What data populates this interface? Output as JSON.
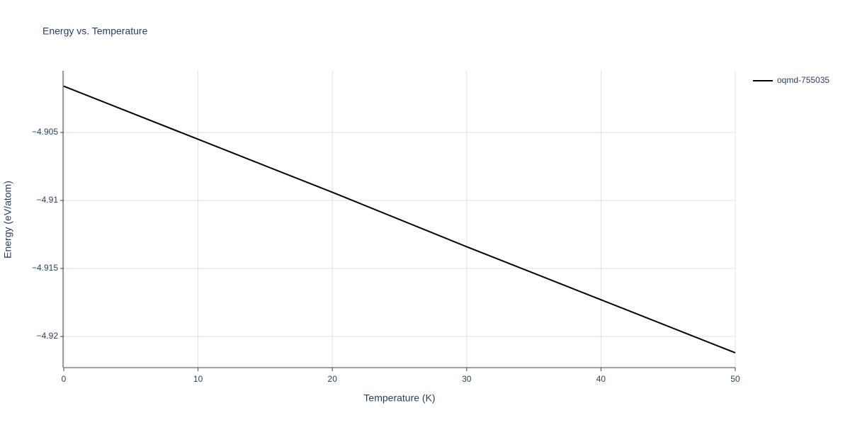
{
  "chart_data": {
    "type": "line",
    "title": "Energy vs. Temperature",
    "x_label": "Temperature (K)",
    "y_label": "Energy (eV/atom)",
    "x": [
      0,
      10,
      20,
      30,
      40,
      50
    ],
    "series": [
      {
        "name": "oqmd-755035",
        "color": "#000000",
        "values": [
          -4.9016,
          -4.9055,
          -4.9094,
          -4.9134,
          -4.9173,
          -4.9212
        ]
      }
    ],
    "xlim": [
      0,
      50
    ],
    "xticks": [
      0,
      10,
      20,
      30,
      40,
      50
    ],
    "ylim": [
      -4.92229,
      -4.90047
    ],
    "yticks": [
      {
        "value": -4.92,
        "label": "−4.92"
      },
      {
        "value": -4.915,
        "label": "−4.915"
      },
      {
        "value": -4.91,
        "label": "−4.91"
      },
      {
        "value": -4.905,
        "label": "−4.905"
      }
    ],
    "grid": true,
    "legend": "right"
  }
}
